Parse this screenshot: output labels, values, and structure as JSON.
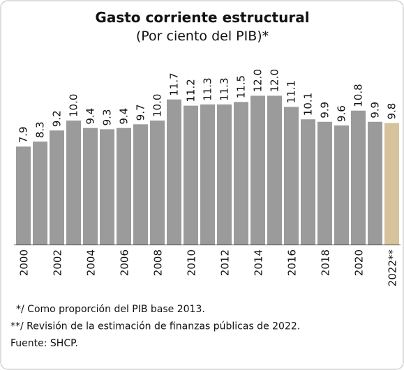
{
  "chart_data": {
    "type": "bar",
    "title": "Gasto corriente estructural",
    "subtitle": "(Por ciento del PIB)*",
    "categories": [
      "2000",
      null,
      "2002",
      null,
      "2004",
      null,
      "2006",
      null,
      "2008",
      null,
      "2010",
      null,
      "2012",
      null,
      "2014",
      null,
      "2016",
      null,
      "2018",
      null,
      "2020",
      null,
      "2022**"
    ],
    "values": [
      7.9,
      8.3,
      9.2,
      10.0,
      9.4,
      9.3,
      9.4,
      9.7,
      10.0,
      11.7,
      11.2,
      11.3,
      11.3,
      11.5,
      12.0,
      12.0,
      11.1,
      10.1,
      9.9,
      9.6,
      10.8,
      9.9,
      9.8
    ],
    "value_labels": [
      "7.9",
      "8.3",
      "9.2",
      "10.0",
      "9.4",
      "9.3",
      "9.4",
      "9.7",
      "10.0",
      "11.7",
      "11.2",
      "11.3",
      "11.3",
      "11.5",
      "12.0",
      "12.0",
      "11.1",
      "10.1",
      "9.9",
      "9.6",
      "10.8",
      "9.9",
      "9.8"
    ],
    "colors": [
      "#9b9b9b",
      "#9b9b9b",
      "#9b9b9b",
      "#9b9b9b",
      "#9b9b9b",
      "#9b9b9b",
      "#9b9b9b",
      "#9b9b9b",
      "#9b9b9b",
      "#9b9b9b",
      "#9b9b9b",
      "#9b9b9b",
      "#9b9b9b",
      "#9b9b9b",
      "#9b9b9b",
      "#9b9b9b",
      "#9b9b9b",
      "#9b9b9b",
      "#9b9b9b",
      "#9b9b9b",
      "#9b9b9b",
      "#9b9b9b",
      "#d6c39c"
    ],
    "ylim": [
      0,
      12
    ],
    "notes": [
      "*/ Como proporción del PIB base 2013.",
      "**/ Revisión de la estimación de finanzas públicas de 2022.",
      "Fuente: SHCP."
    ]
  }
}
